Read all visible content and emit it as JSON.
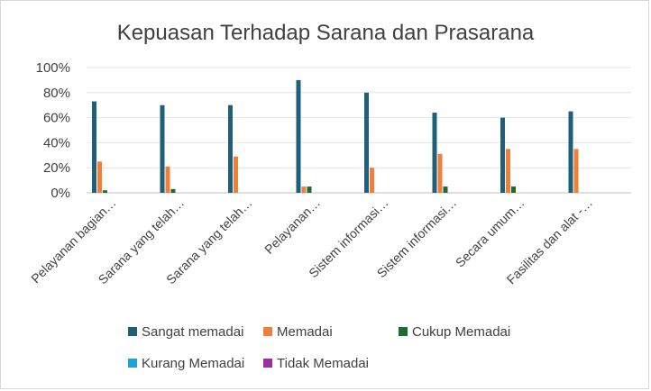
{
  "chart_data": {
    "type": "bar",
    "title": "Kepuasan Terhadap Sarana dan Prasarana",
    "xlabel": "",
    "ylabel": "",
    "ylim": [
      0,
      100
    ],
    "yticks": [
      "100%",
      "80%",
      "60%",
      "40%",
      "20%",
      "0%"
    ],
    "grid": true,
    "legend_position": "bottom",
    "categories": [
      "Pelayanan bagian…",
      "Sarana yang telah…",
      "Sarana yang telah…",
      "Pelayanan…",
      "Sistem informasi…",
      "Sistem informasi…",
      "Secara umum…",
      "Fasilitas dan alat -…"
    ],
    "series": [
      {
        "name": "Sangat memadai",
        "color": "#1f5f7a",
        "values": [
          73,
          70,
          70,
          90,
          80,
          64,
          60,
          65
        ]
      },
      {
        "name": "Memadai",
        "color": "#f07f3c",
        "values": [
          25,
          21,
          29,
          5,
          20,
          31,
          35,
          35
        ]
      },
      {
        "name": "Cukup Memadai",
        "color": "#1e6b2e",
        "values": [
          2,
          3,
          0,
          5,
          0,
          5,
          5,
          0
        ]
      },
      {
        "name": "Kurang Memadai",
        "color": "#1fa3d9",
        "values": [
          0,
          0,
          0,
          0,
          0,
          0,
          0,
          0
        ]
      },
      {
        "name": "Tidak Memadai",
        "color": "#9b2fa3",
        "values": [
          0,
          0,
          0,
          0,
          0,
          0,
          0,
          0
        ]
      }
    ]
  }
}
